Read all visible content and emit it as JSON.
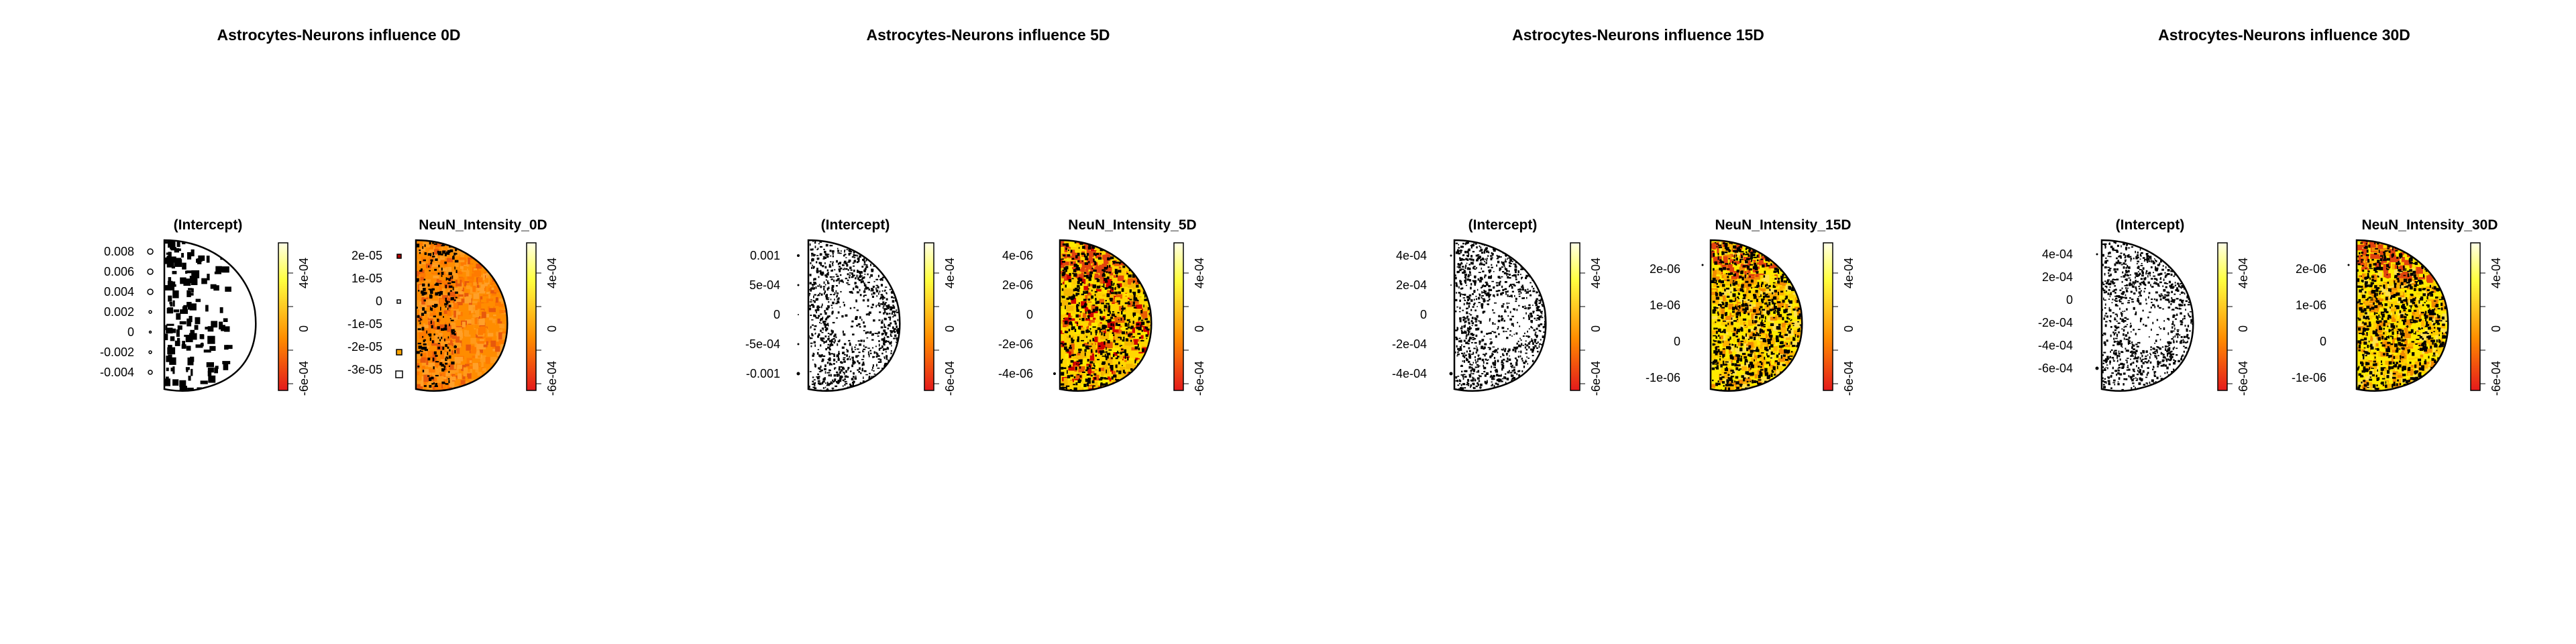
{
  "colors": {
    "legend_low": "#e41a1c",
    "legend_mid": "#ff8c00",
    "legend_high": "#ffff40",
    "legend_top": "#ffffe6",
    "ink": "#000000"
  },
  "legend_ticks": [
    "4e-04",
    "0",
    "-6e-04"
  ],
  "chart_data": [
    {
      "type": "heatmap",
      "title": "Astrocytes-Neurons influence 0D",
      "panels": [
        {
          "subtitle": "(Intercept)",
          "yticks": [
            "0.008",
            "0.006",
            "0.004",
            "0.002",
            "0",
            "-0.002",
            "-0.004"
          ],
          "fill": "sparse"
        },
        {
          "subtitle": "NeuN_Intensity_0D",
          "yticks": [
            "2e-05",
            "1e-05",
            "0",
            "-1e-05",
            "-2e-05",
            "-3e-05"
          ],
          "fill": "orange"
        }
      ],
      "legend_ticks": [
        "4e-04",
        "0",
        "-6e-04"
      ]
    },
    {
      "type": "heatmap",
      "title": "Astrocytes-Neurons influence 5D",
      "panels": [
        {
          "subtitle": "(Intercept)",
          "yticks": [
            "0.001",
            "5e-04",
            "0",
            "-5e-04",
            "-0.001"
          ],
          "fill": "dense"
        },
        {
          "subtitle": "NeuN_Intensity_5D",
          "yticks": [
            "4e-06",
            "2e-06",
            "0",
            "-2e-06",
            "-4e-06"
          ],
          "fill": "mixed"
        }
      ],
      "legend_ticks": [
        "4e-04",
        "0",
        "-6e-04"
      ]
    },
    {
      "type": "heatmap",
      "title": "Astrocytes-Neurons influence 15D",
      "panels": [
        {
          "subtitle": "(Intercept)",
          "yticks": [
            "4e-04",
            "2e-04",
            "0",
            "-2e-04",
            "-4e-04"
          ],
          "fill": "dense"
        },
        {
          "subtitle": "NeuN_Intensity_15D",
          "yticks": [
            "2e-06",
            "1e-06",
            "0",
            "-1e-06"
          ],
          "fill": "yellow"
        }
      ],
      "legend_ticks": [
        "4e-04",
        "0",
        "-6e-04"
      ]
    },
    {
      "type": "heatmap",
      "title": "Astrocytes-Neurons influence 30D",
      "panels": [
        {
          "subtitle": "(Intercept)",
          "yticks": [
            "4e-04",
            "2e-04",
            "0",
            "-2e-04",
            "-4e-04",
            "-6e-04"
          ],
          "fill": "dense"
        },
        {
          "subtitle": "NeuN_Intensity_30D",
          "yticks": [
            "2e-06",
            "1e-06",
            "0",
            "-1e-06"
          ],
          "fill": "yellow"
        }
      ],
      "legend_ticks": [
        "4e-04",
        "0",
        "-6e-04"
      ]
    }
  ]
}
